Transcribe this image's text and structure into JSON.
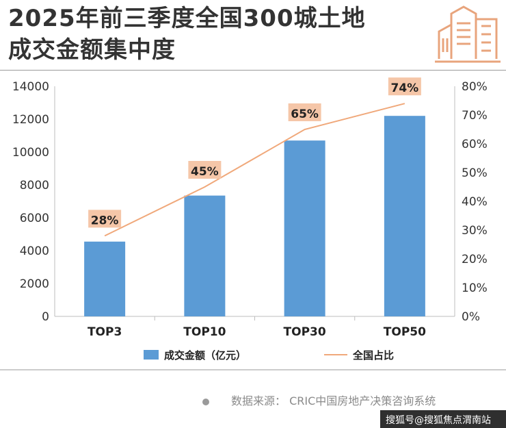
{
  "header": {
    "title_line1": "2025年前三季度全国300城土地",
    "title_line2": "成交金额集中度",
    "logo_icon": "buildings-icon"
  },
  "chart_data": {
    "type": "bar",
    "categories": [
      "TOP3",
      "TOP10",
      "TOP30",
      "TOP50"
    ],
    "series": [
      {
        "name": "成交金额（亿元）",
        "type": "bar",
        "axis": "left",
        "values": [
          4550,
          7350,
          10700,
          12200
        ],
        "color": "#5b9bd5"
      },
      {
        "name": "全国占比",
        "type": "line",
        "axis": "right",
        "values": [
          28,
          45,
          65,
          74
        ],
        "labels": [
          "28%",
          "45%",
          "65%",
          "74%"
        ],
        "color": "#f0a87a"
      }
    ],
    "y_left": {
      "min": 0,
      "max": 14000,
      "ticks": [
        "0",
        "2000",
        "4000",
        "6000",
        "8000",
        "10000",
        "12000",
        "14000"
      ]
    },
    "y_right": {
      "min": 0,
      "max": 80,
      "ticks": [
        "0%",
        "10%",
        "20%",
        "30%",
        "40%",
        "50%",
        "60%",
        "70%",
        "80%"
      ]
    },
    "grid": false,
    "legend_position": "bottom",
    "label_bg": "#f5c6a8"
  },
  "footer": {
    "source": "数据来源：  CRIC中国房地产决策咨询系统",
    "watermark": "搜狐号@搜狐焦点渭南站"
  }
}
